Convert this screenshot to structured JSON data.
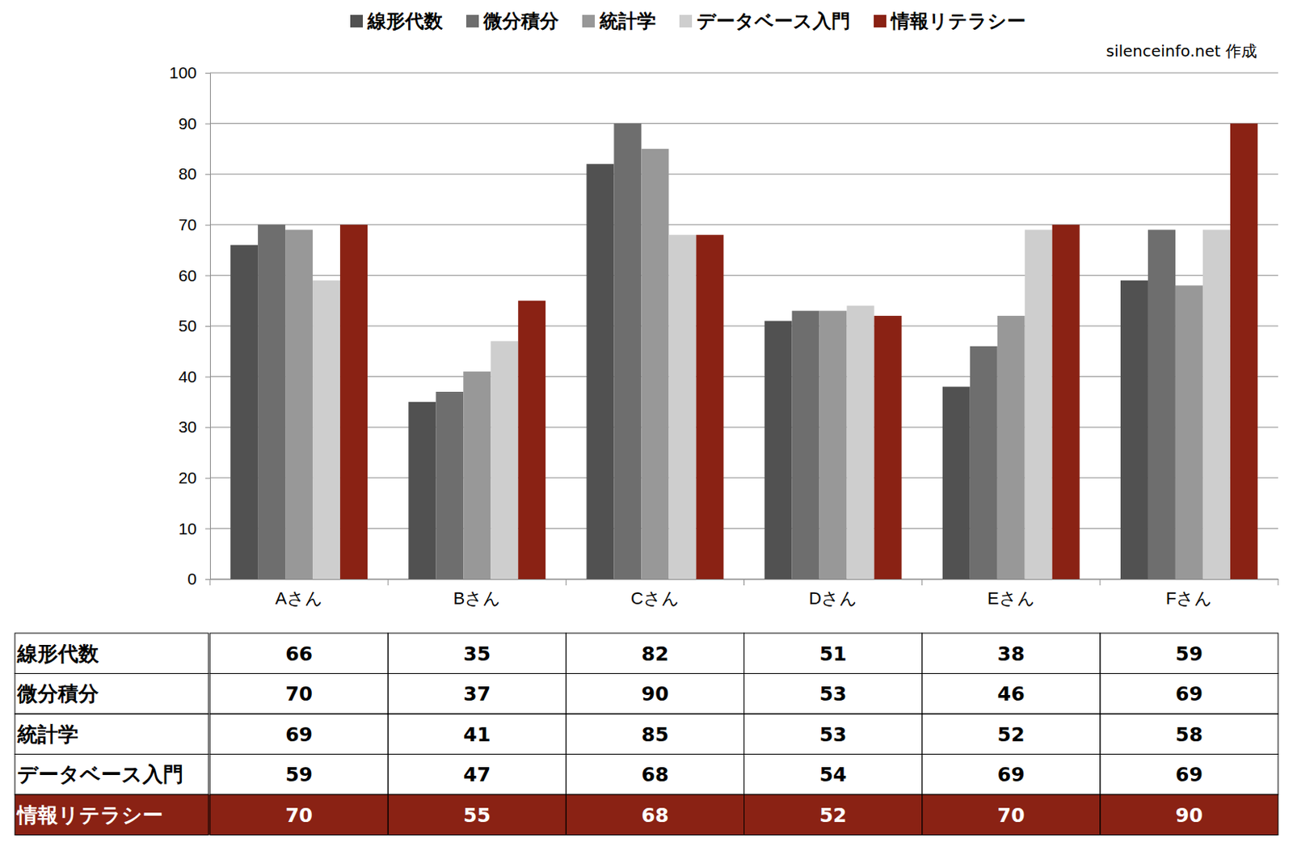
{
  "chart_data": {
    "type": "bar",
    "annotation": "silenceinfo.net 作成",
    "categories": [
      "Aさん",
      "Bさん",
      "Cさん",
      "Dさん",
      "Eさん",
      "Fさん"
    ],
    "series": [
      {
        "name": "線形代数",
        "color": "#515151",
        "values": [
          66,
          35,
          82,
          51,
          38,
          59
        ]
      },
      {
        "name": "微分積分",
        "color": "#6e6e6e",
        "values": [
          70,
          37,
          90,
          53,
          46,
          69
        ]
      },
      {
        "name": "統計学",
        "color": "#989898",
        "values": [
          69,
          41,
          85,
          53,
          52,
          58
        ]
      },
      {
        "name": "データベース入門",
        "color": "#cecece",
        "values": [
          59,
          47,
          68,
          54,
          69,
          69
        ]
      },
      {
        "name": "情報リテラシー",
        "color": "#8a2214",
        "values": [
          70,
          55,
          68,
          52,
          70,
          90
        ]
      }
    ],
    "ylim": [
      0,
      100
    ],
    "yticks": [
      0,
      10,
      20,
      30,
      40,
      50,
      60,
      70,
      80,
      90,
      100
    ],
    "grid": true,
    "legend": "top"
  }
}
